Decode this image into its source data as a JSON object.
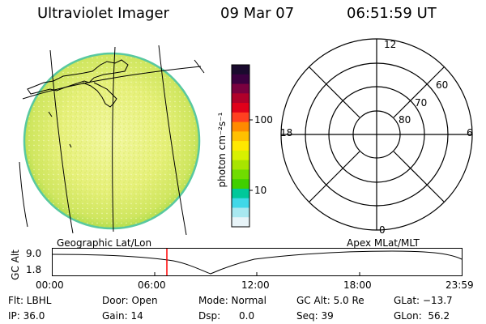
{
  "header": {
    "instrument": "Ultraviolet Imager",
    "date": "09 Mar 07",
    "time": "06:51:59 UT"
  },
  "colorbar": {
    "unit_label": "photon cm⁻²s⁻¹",
    "ticks": [
      "100",
      "10"
    ],
    "colors": [
      "#1a0a2e",
      "#3b0040",
      "#7a003f",
      "#b0002a",
      "#e0001a",
      "#ff4020",
      "#ff8a00",
      "#ffc000",
      "#ffe800",
      "#d8f000",
      "#a8e400",
      "#70dc00",
      "#40d000",
      "#00c89a",
      "#40d8e8",
      "#a8e8f0",
      "#e8f4f8"
    ]
  },
  "polar": {
    "mlt_labels": {
      "top": "12",
      "left": "18",
      "right": "6",
      "bottom": "0"
    },
    "lat_labels": [
      "60",
      "70",
      "80"
    ]
  },
  "timeline": {
    "left_title": "Geographic Lat/Lon",
    "right_title": "Apex MLat/MLT",
    "y_axis_title": "GC Alt",
    "y_ticks": [
      "9.0",
      "1.8"
    ],
    "x_ticks": [
      "00:00",
      "06:00",
      "12:00",
      "18:00",
      "23:59"
    ],
    "current_marker_color": "#ff0000"
  },
  "info": {
    "filter": "Flt: LBHL",
    "door": "Door: Open",
    "mode": "Mode: Normal",
    "gc_alt": "GC Alt: 5.0 Re",
    "glat": "GLat: −13.7",
    "ip": "IP: 36.0",
    "gain": "Gain: 14",
    "dsp": "Dsp:      0.0",
    "seq": "Seq: 39",
    "glon": "GLon:  56.2"
  }
}
